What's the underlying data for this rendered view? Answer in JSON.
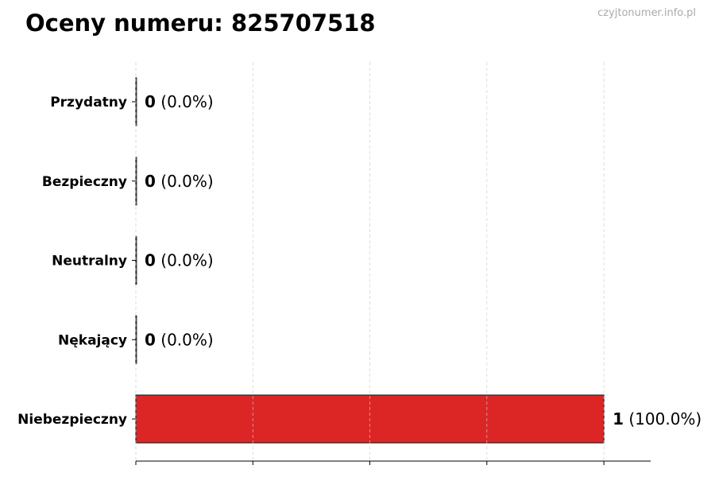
{
  "title": "Oceny numeru: 825707518",
  "watermark": "czyjtonumer.info.pl",
  "chart_data": {
    "type": "bar",
    "orientation": "horizontal",
    "categories": [
      "Przydatny",
      "Bezpieczny",
      "Neutralny",
      "Nękający",
      "Niebezpieczny"
    ],
    "values": [
      0,
      0,
      0,
      0,
      1
    ],
    "labels": [
      {
        "count": "0",
        "pct": "(0.0%)"
      },
      {
        "count": "0",
        "pct": "(0.0%)"
      },
      {
        "count": "0",
        "pct": "(0.0%)"
      },
      {
        "count": "0",
        "pct": "(0.0%)"
      },
      {
        "count": "1",
        "pct": "(100.0%)"
      }
    ],
    "bar_color": "#dc2626",
    "xlim": [
      0,
      1.1
    ],
    "xticks": [
      0,
      0.25,
      0.5,
      0.75,
      1.0
    ],
    "grid": "x-dashed",
    "title": "Oceny numeru: 825707518"
  }
}
